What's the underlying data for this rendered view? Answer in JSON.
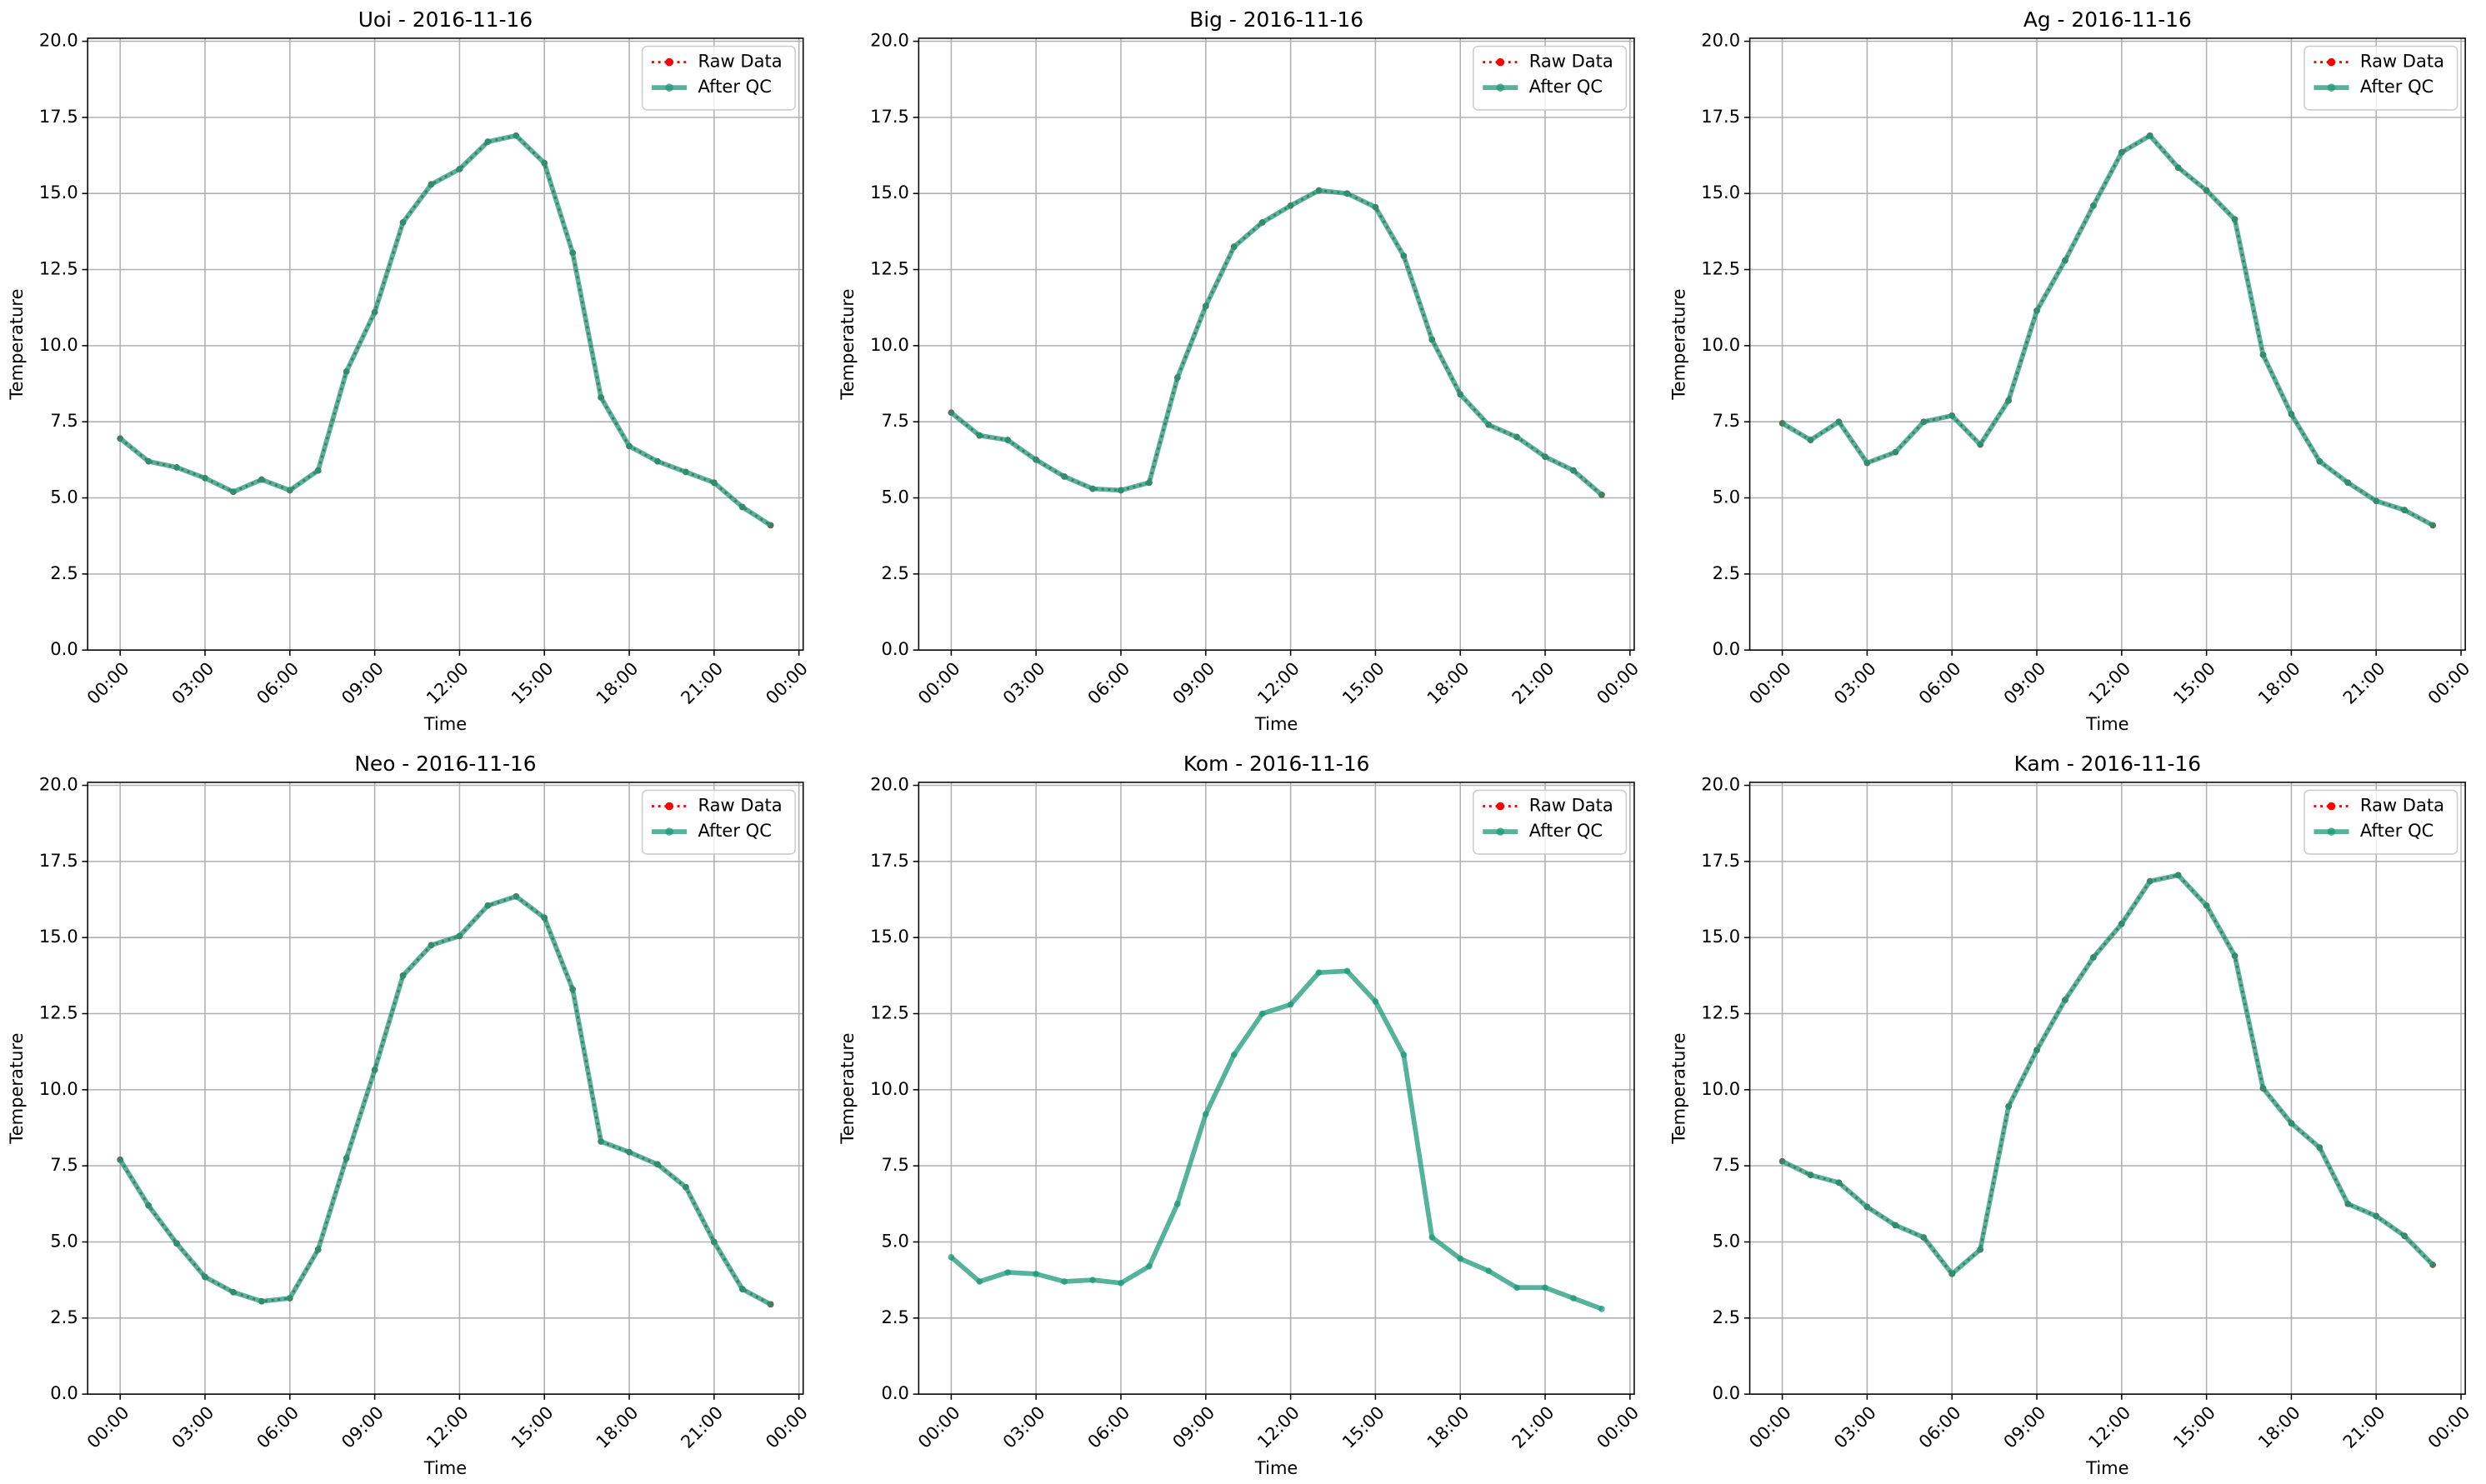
{
  "chart_data": [
    {
      "type": "line",
      "title": "Uoi - 2016-11-16",
      "xlabel": "Time",
      "ylabel": "Temperature",
      "grid": true,
      "legend": "upper right",
      "x": [
        0,
        1,
        2,
        3,
        4,
        5,
        6,
        7,
        8,
        9,
        10,
        11,
        12,
        13,
        14,
        15,
        16,
        17,
        18,
        19,
        20,
        21,
        22,
        23
      ],
      "xlim": [
        -1.15,
        24.15
      ],
      "xticks": [
        {
          "value": 0,
          "label": "00:00"
        },
        {
          "value": 3,
          "label": "03:00"
        },
        {
          "value": 6,
          "label": "06:00"
        },
        {
          "value": 9,
          "label": "09:00"
        },
        {
          "value": 12,
          "label": "12:00"
        },
        {
          "value": 15,
          "label": "15:00"
        },
        {
          "value": 18,
          "label": "18:00"
        },
        {
          "value": 21,
          "label": "21:00"
        },
        {
          "value": 24,
          "label": "00:00"
        }
      ],
      "ylim": [
        0,
        20.1
      ],
      "yticks": [
        {
          "value": 0,
          "label": "0.0"
        },
        2.5,
        {
          "value": 5,
          "label": "5.0"
        },
        7.5,
        {
          "value": 10,
          "label": "10.0"
        },
        12.5,
        {
          "value": 15,
          "label": "15.0"
        },
        17.5,
        {
          "value": 20,
          "label": "20.0"
        }
      ],
      "series": [
        {
          "name": "Raw Data",
          "color": "#ff0000",
          "values": [
            6.95,
            6.2,
            6.0,
            5.65,
            5.2,
            5.6,
            5.25,
            5.9,
            9.15,
            11.1,
            14.05,
            15.3,
            15.8,
            16.7,
            16.9,
            16.0,
            13.05,
            8.3,
            6.7,
            6.2,
            5.85,
            5.5,
            4.7,
            4.1
          ]
        },
        {
          "name": "After QC",
          "color": "#1b9a78",
          "values": [
            6.95,
            6.2,
            6.0,
            5.65,
            5.2,
            5.6,
            5.25,
            5.9,
            9.15,
            11.1,
            14.05,
            15.3,
            15.8,
            16.7,
            16.9,
            16.0,
            13.05,
            8.3,
            6.7,
            6.2,
            5.85,
            5.5,
            4.7,
            4.1
          ]
        }
      ]
    },
    {
      "type": "line",
      "title": "Big - 2016-11-16",
      "xlabel": "Time",
      "ylabel": "Temperature",
      "grid": true,
      "legend": "upper right",
      "x": [
        0,
        1,
        2,
        3,
        4,
        5,
        6,
        7,
        8,
        9,
        10,
        11,
        12,
        13,
        14,
        15,
        16,
        17,
        18,
        19,
        20,
        21,
        22,
        23
      ],
      "xlim": [
        -1.15,
        24.15
      ],
      "xticks": [
        {
          "value": 0,
          "label": "00:00"
        },
        {
          "value": 3,
          "label": "03:00"
        },
        {
          "value": 6,
          "label": "06:00"
        },
        {
          "value": 9,
          "label": "09:00"
        },
        {
          "value": 12,
          "label": "12:00"
        },
        {
          "value": 15,
          "label": "15:00"
        },
        {
          "value": 18,
          "label": "18:00"
        },
        {
          "value": 21,
          "label": "21:00"
        },
        {
          "value": 24,
          "label": "00:00"
        }
      ],
      "ylim": [
        0,
        20.1
      ],
      "yticks": [
        {
          "value": 0,
          "label": "0.0"
        },
        2.5,
        {
          "value": 5,
          "label": "5.0"
        },
        7.5,
        {
          "value": 10,
          "label": "10.0"
        },
        12.5,
        {
          "value": 15,
          "label": "15.0"
        },
        17.5,
        {
          "value": 20,
          "label": "20.0"
        }
      ],
      "series": [
        {
          "name": "Raw Data",
          "color": "#ff0000",
          "values": [
            7.8,
            7.05,
            6.9,
            6.25,
            5.7,
            5.3,
            5.25,
            5.5,
            8.95,
            11.3,
            13.25,
            14.05,
            14.6,
            15.1,
            15.0,
            14.55,
            12.95,
            10.2,
            8.4,
            7.4,
            7.0,
            6.35,
            5.9,
            5.1
          ]
        },
        {
          "name": "After QC",
          "color": "#1b9a78",
          "values": [
            7.8,
            7.05,
            6.9,
            6.25,
            5.7,
            5.3,
            5.25,
            5.5,
            8.95,
            11.3,
            13.25,
            14.05,
            14.6,
            15.1,
            15.0,
            14.55,
            12.95,
            10.2,
            8.4,
            7.4,
            7.0,
            6.35,
            5.9,
            5.1
          ]
        }
      ]
    },
    {
      "type": "line",
      "title": "Ag - 2016-11-16",
      "xlabel": "Time",
      "ylabel": "Temperature",
      "grid": true,
      "legend": "upper right",
      "x": [
        0,
        1,
        2,
        3,
        4,
        5,
        6,
        7,
        8,
        9,
        10,
        11,
        12,
        13,
        14,
        15,
        16,
        17,
        18,
        19,
        20,
        21,
        22,
        23
      ],
      "xlim": [
        -1.15,
        24.15
      ],
      "xticks": [
        {
          "value": 0,
          "label": "00:00"
        },
        {
          "value": 3,
          "label": "03:00"
        },
        {
          "value": 6,
          "label": "06:00"
        },
        {
          "value": 9,
          "label": "09:00"
        },
        {
          "value": 12,
          "label": "12:00"
        },
        {
          "value": 15,
          "label": "15:00"
        },
        {
          "value": 18,
          "label": "18:00"
        },
        {
          "value": 21,
          "label": "21:00"
        },
        {
          "value": 24,
          "label": "00:00"
        }
      ],
      "ylim": [
        0,
        20.1
      ],
      "yticks": [
        {
          "value": 0,
          "label": "0.0"
        },
        2.5,
        {
          "value": 5,
          "label": "5.0"
        },
        7.5,
        {
          "value": 10,
          "label": "10.0"
        },
        12.5,
        {
          "value": 15,
          "label": "15.0"
        },
        17.5,
        {
          "value": 20,
          "label": "20.0"
        }
      ],
      "series": [
        {
          "name": "Raw Data",
          "color": "#ff0000",
          "values": [
            7.45,
            6.9,
            7.5,
            6.15,
            6.5,
            7.5,
            7.7,
            6.75,
            8.2,
            11.15,
            12.8,
            14.6,
            16.35,
            16.9,
            15.85,
            15.1,
            14.15,
            9.7,
            7.75,
            6.2,
            5.5,
            4.9,
            4.6,
            4.1
          ]
        },
        {
          "name": "After QC",
          "color": "#1b9a78",
          "values": [
            7.45,
            6.9,
            7.5,
            6.15,
            6.5,
            7.5,
            7.7,
            6.75,
            8.2,
            11.15,
            12.8,
            14.6,
            16.35,
            16.9,
            15.85,
            15.1,
            14.15,
            9.7,
            7.75,
            6.2,
            5.5,
            4.9,
            4.6,
            4.1
          ]
        }
      ]
    },
    {
      "type": "line",
      "title": "Neo - 2016-11-16",
      "xlabel": "Time",
      "ylabel": "Temperature",
      "grid": true,
      "legend": "upper right",
      "x": [
        0,
        1,
        2,
        3,
        4,
        5,
        6,
        7,
        8,
        9,
        10,
        11,
        12,
        13,
        14,
        15,
        16,
        17,
        18,
        19,
        20,
        21,
        22,
        23
      ],
      "xlim": [
        -1.15,
        24.15
      ],
      "xticks": [
        {
          "value": 0,
          "label": "00:00"
        },
        {
          "value": 3,
          "label": "03:00"
        },
        {
          "value": 6,
          "label": "06:00"
        },
        {
          "value": 9,
          "label": "09:00"
        },
        {
          "value": 12,
          "label": "12:00"
        },
        {
          "value": 15,
          "label": "15:00"
        },
        {
          "value": 18,
          "label": "18:00"
        },
        {
          "value": 21,
          "label": "21:00"
        },
        {
          "value": 24,
          "label": "00:00"
        }
      ],
      "ylim": [
        0,
        20.1
      ],
      "yticks": [
        {
          "value": 0,
          "label": "0.0"
        },
        2.5,
        {
          "value": 5,
          "label": "5.0"
        },
        7.5,
        {
          "value": 10,
          "label": "10.0"
        },
        12.5,
        {
          "value": 15,
          "label": "15.0"
        },
        17.5,
        {
          "value": 20,
          "label": "20.0"
        }
      ],
      "series": [
        {
          "name": "Raw Data",
          "color": "#ff0000",
          "values": [
            7.7,
            6.2,
            4.95,
            3.85,
            3.35,
            3.05,
            3.15,
            4.75,
            7.75,
            10.65,
            13.75,
            14.75,
            15.05,
            16.05,
            16.35,
            15.65,
            13.3,
            8.3,
            7.95,
            7.55,
            6.8,
            5.0,
            3.45,
            2.95
          ]
        },
        {
          "name": "After QC",
          "color": "#1b9a78",
          "values": [
            7.7,
            6.2,
            4.95,
            3.85,
            3.35,
            3.05,
            3.15,
            4.75,
            7.75,
            10.65,
            13.75,
            14.75,
            15.05,
            16.05,
            16.35,
            15.65,
            13.3,
            8.3,
            7.95,
            7.55,
            6.8,
            5.0,
            3.45,
            2.95
          ]
        }
      ]
    },
    {
      "type": "line",
      "title": "Kom - 2016-11-16",
      "xlabel": "Time",
      "ylabel": "Temperature",
      "grid": true,
      "legend": "upper right",
      "x": [
        0,
        1,
        2,
        3,
        4,
        5,
        6,
        7,
        8,
        9,
        10,
        11,
        12,
        13,
        14,
        15,
        16,
        17,
        18,
        19,
        20,
        21,
        22,
        23
      ],
      "xlim": [
        -1.15,
        24.15
      ],
      "xticks": [
        {
          "value": 0,
          "label": "00:00"
        },
        {
          "value": 3,
          "label": "03:00"
        },
        {
          "value": 6,
          "label": "06:00"
        },
        {
          "value": 9,
          "label": "09:00"
        },
        {
          "value": 12,
          "label": "12:00"
        },
        {
          "value": 15,
          "label": "15:00"
        },
        {
          "value": 18,
          "label": "18:00"
        },
        {
          "value": 21,
          "label": "21:00"
        },
        {
          "value": 24,
          "label": "00:00"
        }
      ],
      "ylim": [
        0,
        20.1
      ],
      "yticks": [
        {
          "value": 0,
          "label": "0.0"
        },
        2.5,
        {
          "value": 5,
          "label": "5.0"
        },
        7.5,
        {
          "value": 10,
          "label": "10.0"
        },
        12.5,
        {
          "value": 15,
          "label": "15.0"
        },
        17.5,
        {
          "value": 20,
          "label": "20.0"
        }
      ],
      "series": [
        {
          "name": "Raw Data",
          "color": "#ff0000",
          "values": [
            null,
            null,
            null,
            null,
            null,
            null,
            null,
            null,
            null,
            null,
            null,
            null,
            null,
            null,
            null,
            null,
            null,
            null,
            null,
            null,
            null,
            null,
            null,
            null
          ]
        },
        {
          "name": "After QC",
          "color": "#1b9a78",
          "values": [
            4.5,
            3.7,
            4.0,
            3.95,
            3.7,
            3.75,
            3.65,
            4.2,
            6.25,
            9.2,
            11.15,
            12.5,
            12.8,
            13.85,
            13.9,
            12.9,
            11.15,
            5.15,
            4.45,
            4.05,
            3.5,
            3.5,
            3.15,
            2.8
          ]
        }
      ]
    },
    {
      "type": "line",
      "title": "Kam - 2016-11-16",
      "xlabel": "Time",
      "ylabel": "Temperature",
      "grid": true,
      "legend": "upper right",
      "x": [
        0,
        1,
        2,
        3,
        4,
        5,
        6,
        7,
        8,
        9,
        10,
        11,
        12,
        13,
        14,
        15,
        16,
        17,
        18,
        19,
        20,
        21,
        22,
        23
      ],
      "xlim": [
        -1.15,
        24.15
      ],
      "xticks": [
        {
          "value": 0,
          "label": "00:00"
        },
        {
          "value": 3,
          "label": "03:00"
        },
        {
          "value": 6,
          "label": "06:00"
        },
        {
          "value": 9,
          "label": "09:00"
        },
        {
          "value": 12,
          "label": "12:00"
        },
        {
          "value": 15,
          "label": "15:00"
        },
        {
          "value": 18,
          "label": "18:00"
        },
        {
          "value": 21,
          "label": "21:00"
        },
        {
          "value": 24,
          "label": "00:00"
        }
      ],
      "ylim": [
        0,
        20.1
      ],
      "yticks": [
        {
          "value": 0,
          "label": "0.0"
        },
        2.5,
        {
          "value": 5,
          "label": "5.0"
        },
        7.5,
        {
          "value": 10,
          "label": "10.0"
        },
        12.5,
        {
          "value": 15,
          "label": "15.0"
        },
        17.5,
        {
          "value": 20,
          "label": "20.0"
        }
      ],
      "series": [
        {
          "name": "Raw Data",
          "color": "#ff0000",
          "values": [
            7.65,
            7.2,
            6.95,
            6.15,
            5.55,
            5.15,
            3.95,
            4.75,
            9.45,
            11.3,
            12.95,
            14.35,
            15.45,
            16.85,
            17.05,
            16.05,
            14.4,
            10.05,
            8.9,
            8.1,
            6.25,
            5.85,
            5.2,
            4.25
          ]
        },
        {
          "name": "After QC",
          "color": "#1b9a78",
          "values": [
            7.65,
            7.2,
            6.95,
            6.15,
            5.55,
            5.15,
            3.95,
            4.75,
            9.45,
            11.3,
            12.95,
            14.35,
            15.45,
            16.85,
            17.05,
            16.05,
            14.4,
            10.05,
            8.9,
            8.1,
            6.25,
            5.85,
            5.2,
            4.25
          ]
        }
      ]
    }
  ]
}
